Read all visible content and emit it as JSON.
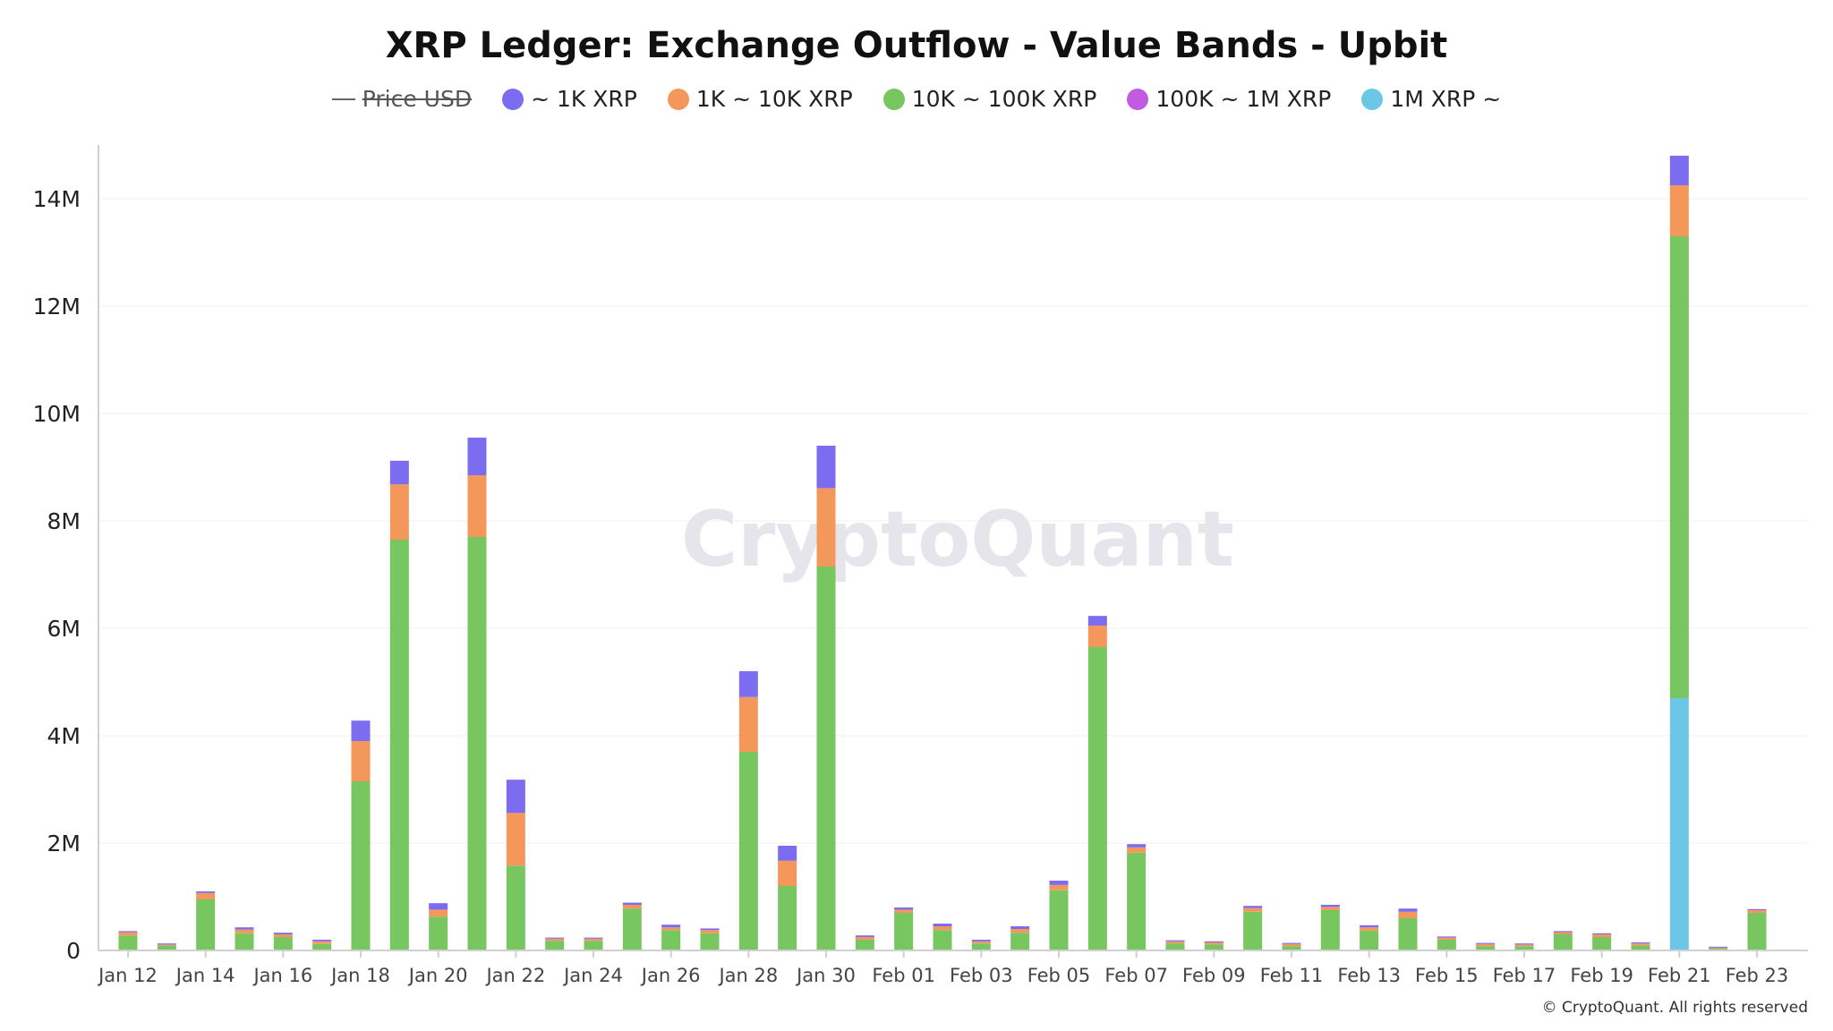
{
  "header": {
    "title": "XRP Ledger: Exchange Outflow - Value Bands - Upbit"
  },
  "watermark": "CryptoQuant",
  "copyright": "© CryptoQuant. All rights reserved",
  "legend": [
    {
      "label": "Price USD",
      "type": "line",
      "hidden": true,
      "color": "#666666"
    },
    {
      "label": "~ 1K XRP",
      "type": "dot",
      "color": "#7b6cf0"
    },
    {
      "label": "1K ~ 10K XRP",
      "type": "dot",
      "color": "#f4975a"
    },
    {
      "label": "10K ~ 100K XRP",
      "type": "dot",
      "color": "#78c65f"
    },
    {
      "label": "100K ~ 1M XRP",
      "type": "dot",
      "color": "#c35be0"
    },
    {
      "label": "1M XRP ~",
      "type": "dot",
      "color": "#6cc6e6"
    }
  ],
  "chart_data": {
    "type": "bar",
    "stacked": true,
    "title": "XRP Ledger: Exchange Outflow - Value Bands - Upbit",
    "ylim": [
      0,
      15000000
    ],
    "y_ticks": [
      {
        "value": 0,
        "label": "0"
      },
      {
        "value": 2000000,
        "label": "2M"
      },
      {
        "value": 4000000,
        "label": "4M"
      },
      {
        "value": 6000000,
        "label": "6M"
      },
      {
        "value": 8000000,
        "label": "8M"
      },
      {
        "value": 10000000,
        "label": "10M"
      },
      {
        "value": 12000000,
        "label": "12M"
      },
      {
        "value": 14000000,
        "label": "14M"
      }
    ],
    "grid": true,
    "legend_position": "top-center",
    "categories": [
      "Jan 12",
      "Jan 13",
      "Jan 14",
      "Jan 15",
      "Jan 16",
      "Jan 17",
      "Jan 18",
      "Jan 19",
      "Jan 20",
      "Jan 21",
      "Jan 22",
      "Jan 23",
      "Jan 24",
      "Jan 25",
      "Jan 26",
      "Jan 27",
      "Jan 28",
      "Jan 29",
      "Jan 30",
      "Jan 31",
      "Feb 01",
      "Feb 02",
      "Feb 03",
      "Feb 04",
      "Feb 05",
      "Feb 06",
      "Feb 07",
      "Feb 08",
      "Feb 09",
      "Feb 10",
      "Feb 11",
      "Feb 12",
      "Feb 13",
      "Feb 14",
      "Feb 15",
      "Feb 16",
      "Feb 17",
      "Feb 18",
      "Feb 19",
      "Feb 20",
      "Feb 21",
      "Feb 22",
      "Feb 23"
    ],
    "x_tick_labels": [
      "Jan 12",
      "Jan 14",
      "Jan 16",
      "Jan 18",
      "Jan 20",
      "Jan 22",
      "Jan 24",
      "Jan 26",
      "Jan 28",
      "Jan 30",
      "Feb 01",
      "Feb 03",
      "Feb 05",
      "Feb 07",
      "Feb 09",
      "Feb 11",
      "Feb 13",
      "Feb 15",
      "Feb 17",
      "Feb 19",
      "Feb 21",
      "Feb 23"
    ],
    "series": [
      {
        "name": "1M XRP ~",
        "color": "#6cc6e6",
        "values": [
          0,
          0,
          0,
          0,
          0,
          0,
          0,
          0,
          0,
          0,
          0,
          0,
          0,
          0,
          0,
          0,
          0,
          0,
          0,
          0,
          0,
          0,
          0,
          0,
          0,
          0,
          0,
          0,
          0,
          0,
          0,
          0,
          0,
          0,
          0,
          0,
          0,
          0,
          0,
          0,
          4700000,
          0,
          0
        ]
      },
      {
        "name": "100K ~ 1M XRP",
        "color": "#c35be0",
        "values": [
          0,
          0,
          0,
          0,
          0,
          0,
          0,
          0,
          0,
          0,
          0,
          0,
          0,
          0,
          0,
          0,
          0,
          0,
          0,
          0,
          0,
          0,
          0,
          0,
          0,
          0,
          0,
          0,
          0,
          0,
          0,
          0,
          0,
          0,
          0,
          0,
          0,
          0,
          0,
          0,
          0,
          0,
          0
        ]
      },
      {
        "name": "10K ~ 100K XRP",
        "color": "#78c65f",
        "values": [
          280000,
          90000,
          950000,
          320000,
          250000,
          120000,
          3150000,
          7650000,
          630000,
          7700000,
          1580000,
          180000,
          180000,
          780000,
          380000,
          320000,
          3700000,
          1200000,
          7150000,
          200000,
          700000,
          380000,
          130000,
          330000,
          1120000,
          5650000,
          1820000,
          130000,
          110000,
          720000,
          80000,
          750000,
          370000,
          600000,
          200000,
          80000,
          80000,
          300000,
          250000,
          90000,
          8600000,
          40000,
          700000
        ]
      },
      {
        "name": "1K ~ 10K XRP",
        "color": "#f4975a",
        "values": [
          60000,
          20000,
          120000,
          70000,
          50000,
          50000,
          750000,
          1030000,
          130000,
          1150000,
          980000,
          40000,
          40000,
          70000,
          50000,
          60000,
          1020000,
          470000,
          1460000,
          50000,
          60000,
          70000,
          40000,
          70000,
          100000,
          400000,
          100000,
          40000,
          40000,
          70000,
          40000,
          60000,
          60000,
          120000,
          40000,
          40000,
          30000,
          40000,
          50000,
          40000,
          950000,
          20000,
          50000
        ]
      },
      {
        "name": "~ 1K XRP",
        "color": "#7b6cf0",
        "values": [
          20000,
          20000,
          30000,
          40000,
          30000,
          30000,
          380000,
          440000,
          120000,
          700000,
          620000,
          20000,
          20000,
          40000,
          50000,
          30000,
          480000,
          280000,
          790000,
          30000,
          40000,
          50000,
          30000,
          50000,
          80000,
          180000,
          60000,
          20000,
          20000,
          40000,
          20000,
          40000,
          40000,
          60000,
          20000,
          20000,
          20000,
          20000,
          20000,
          20000,
          550000,
          10000,
          20000
        ]
      }
    ]
  }
}
